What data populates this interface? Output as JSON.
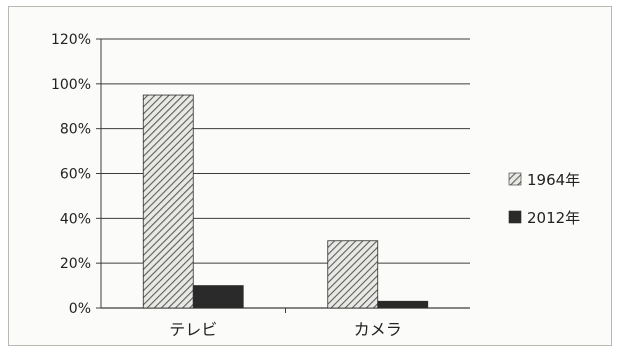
{
  "chart_data": {
    "type": "bar",
    "categories": [
      "テレビ",
      "カメラ"
    ],
    "series": [
      {
        "name": "1964年",
        "values": [
          95,
          30
        ],
        "pattern": "diagonal-hatch",
        "color": "#6a6a6a"
      },
      {
        "name": "2012年",
        "values": [
          10,
          3
        ],
        "pattern": "solid",
        "color": "#2a2a2a"
      }
    ],
    "y_ticks": [
      "0%",
      "20%",
      "40%",
      "60%",
      "80%",
      "100%",
      "120%"
    ],
    "ylim": [
      0,
      120
    ],
    "grid": true,
    "legend_position": "right",
    "title": "",
    "xlabel": "",
    "ylabel": ""
  }
}
